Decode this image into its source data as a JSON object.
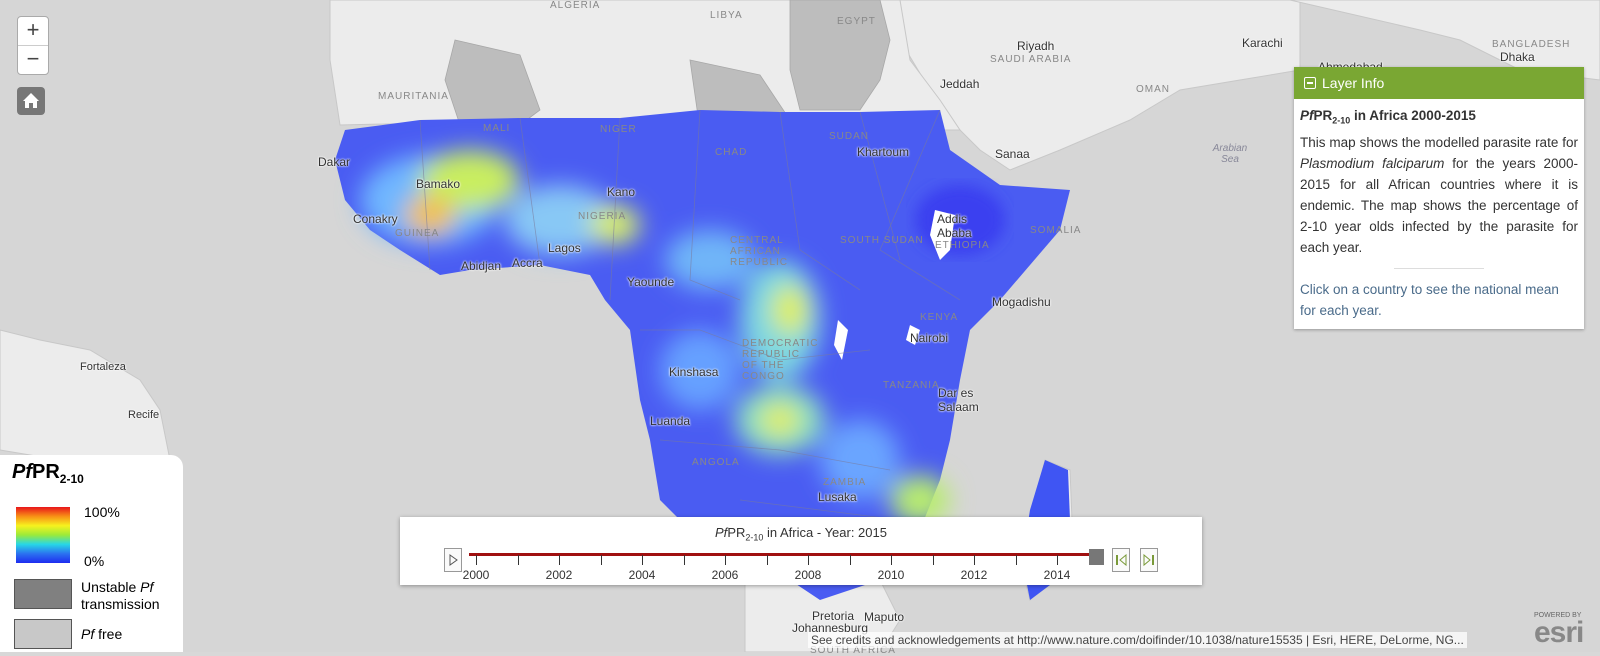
{
  "zoom": {
    "in_label": "+",
    "out_label": "−"
  },
  "layer_info": {
    "header": "Layer Info",
    "title_prefix": "Pf",
    "title_mid": "PR",
    "title_sub": "2-10",
    "title_suffix": " in Africa 2000-2015",
    "desc_1": "This map shows the modelled parasite rate for ",
    "desc_species": "Plasmodium falciparum",
    "desc_2": " for the years 2000-2015 for all African countries where it is endemic. The map shows the percentage of 2-10 year olds infected by the parasite for each year.",
    "click_text": "Click on a country to see the national mean for each year."
  },
  "legend": {
    "title_pf": "Pf",
    "title_pr": "PR",
    "title_sub": "2-10",
    "max_label": "100%",
    "min_label": "0%",
    "unstable_pf": "Pf",
    "unstable_1": "Unstable ",
    "unstable_2": "transmission",
    "free_pf": "Pf",
    "free_label": " free",
    "unstable_color": "#808080",
    "free_color": "#c8c8c8"
  },
  "time_slider": {
    "title_pf": "Pf",
    "title_pr": "PR",
    "title_sub": "2-10",
    "title_suffix": " in Africa - Year: 2015",
    "year_labels": [
      "2000",
      "2002",
      "2004",
      "2006",
      "2008",
      "2010",
      "2012",
      "2014"
    ],
    "current_year": 2015
  },
  "cities": [
    "Riyadh",
    "Karachi",
    "Ahmedabad",
    "Dhaka",
    "Jeddah",
    "Sanaa",
    "Khartoum",
    "Dakar",
    "Bamako",
    "Kano",
    "Conakry",
    "Abidjan",
    "Accra",
    "Lagos",
    "Yaounde",
    "Addis Ababa",
    "Mogadishu",
    "Nairobi",
    "Kinshasa",
    "Luanda",
    "Dar es Salaam",
    "Lusaka",
    "Pretoria",
    "Maputo",
    "Johannesburg",
    "Fortaleza",
    "Recife"
  ],
  "regions": [
    "ALGERIA",
    "LIBYA",
    "EGYPT",
    "SAUDI ARABIA",
    "OMAN",
    "BANGLADESH",
    "MAURITANIA",
    "MALI",
    "NIGER",
    "CHAD",
    "SUDAN",
    "SOUTH SUDAN",
    "CENTRAL AFRICAN REPUBLIC",
    "NIGERIA",
    "GUINEA",
    "DEMOCRATIC REPUBLIC OF THE CONGO",
    "TANZANIA",
    "KENYA",
    "SOMALIA",
    "ETHIOPIA",
    "ANGOLA",
    "ZAMBIA",
    "SOUTH AFRICA"
  ],
  "seas": [
    "Arabian Sea"
  ],
  "credits": "See credits and acknowledgements at http://www.nature.com/doifinder/10.1038/nature15535 | Esri, HERE, DeLorme, NG...",
  "esri": {
    "powered": "POWERED BY",
    "name": "esri"
  }
}
